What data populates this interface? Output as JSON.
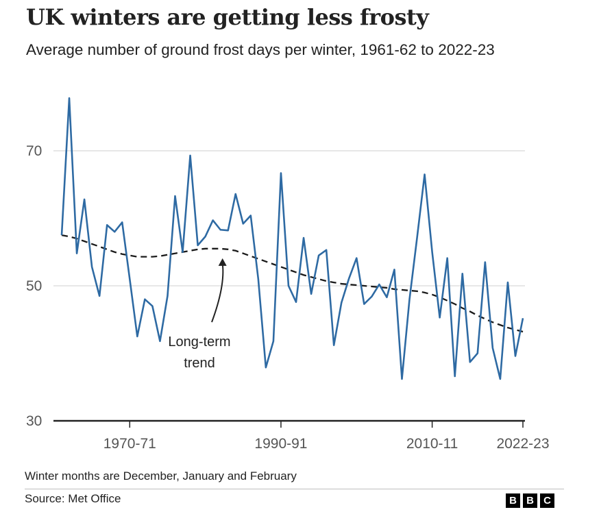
{
  "title": "UK winters are getting less frosty",
  "subtitle": "Average number of ground frost days per winter, 1961-62 to 2022-23",
  "note": "Winter months are December, January and February",
  "source": "Source: Met Office",
  "logo": [
    "B",
    "B",
    "C"
  ],
  "chart_data": {
    "type": "line",
    "title": "UK winters are getting less frosty",
    "subtitle": "Average number of ground frost days per winter, 1961-62 to 2022-23",
    "xlabel": "",
    "ylabel": "",
    "x_ticks": [
      {
        "label": "1970-71",
        "index": 9
      },
      {
        "label": "1990-91",
        "index": 29
      },
      {
        "label": "2010-11",
        "index": 49
      },
      {
        "label": "2022-23",
        "index": 61
      }
    ],
    "y_ticks": [
      30,
      50,
      70
    ],
    "ylim": [
      30,
      78
    ],
    "grid": true,
    "x": [
      "1961-62",
      "1962-63",
      "1963-64",
      "1964-65",
      "1965-66",
      "1966-67",
      "1967-68",
      "1968-69",
      "1969-70",
      "1970-71",
      "1971-72",
      "1972-73",
      "1973-74",
      "1974-75",
      "1975-76",
      "1976-77",
      "1977-78",
      "1978-79",
      "1979-80",
      "1980-81",
      "1981-82",
      "1982-83",
      "1983-84",
      "1984-85",
      "1985-86",
      "1986-87",
      "1987-88",
      "1988-89",
      "1989-90",
      "1990-91",
      "1991-92",
      "1992-93",
      "1993-94",
      "1994-95",
      "1995-96",
      "1996-97",
      "1997-98",
      "1998-99",
      "1999-00",
      "2000-01",
      "2001-02",
      "2002-03",
      "2003-04",
      "2004-05",
      "2005-06",
      "2006-07",
      "2007-08",
      "2008-09",
      "2009-10",
      "2010-11",
      "2011-12",
      "2012-13",
      "2013-14",
      "2014-15",
      "2015-16",
      "2016-17",
      "2017-18",
      "2018-19",
      "2019-20",
      "2020-21",
      "2021-22",
      "2022-23"
    ],
    "series": [
      {
        "name": "",
        "color": "#2e6aa3",
        "values": [
          57.5,
          77.8,
          54.8,
          62.8,
          52.8,
          48.5,
          59.0,
          58.0,
          59.4,
          51.0,
          42.5,
          48.0,
          47.0,
          41.8,
          48.5,
          63.3,
          55.0,
          69.3,
          56.0,
          57.3,
          59.7,
          58.3,
          58.2,
          63.6,
          59.2,
          60.4,
          51.0,
          37.9,
          41.8,
          66.7,
          50.0,
          47.6,
          57.1,
          48.8,
          54.5,
          55.3,
          41.2,
          47.5,
          51.1,
          54.1,
          47.3,
          48.4,
          50.2,
          48.3,
          52.4,
          36.2,
          48.0,
          57.1,
          66.5,
          55.0,
          45.3,
          54.1,
          36.6,
          51.8,
          38.7,
          40.0,
          53.5,
          40.8,
          36.2,
          50.5,
          39.6,
          45.2
        ]
      },
      {
        "name": "Long-term trend",
        "color": "#1a1a1a",
        "style": "dashed",
        "values": [
          57.5,
          57.3,
          57.0,
          56.6,
          56.2,
          55.8,
          55.4,
          55.0,
          54.7,
          54.5,
          54.3,
          54.3,
          54.3,
          54.4,
          54.6,
          54.8,
          55.0,
          55.2,
          55.4,
          55.5,
          55.5,
          55.5,
          55.4,
          55.2,
          54.8,
          54.4,
          54.0,
          53.6,
          53.2,
          52.8,
          52.4,
          52.0,
          51.6,
          51.3,
          51.0,
          50.7,
          50.5,
          50.3,
          50.2,
          50.1,
          50.0,
          49.9,
          49.8,
          49.7,
          49.5,
          49.4,
          49.3,
          49.2,
          49.0,
          48.7,
          48.3,
          47.8,
          47.3,
          46.7,
          46.2,
          45.6,
          45.1,
          44.6,
          44.2,
          43.8,
          43.5,
          43.2
        ]
      }
    ],
    "annotations": [
      {
        "text": "Long-term",
        "line2": "trend",
        "index": 21
      }
    ]
  }
}
